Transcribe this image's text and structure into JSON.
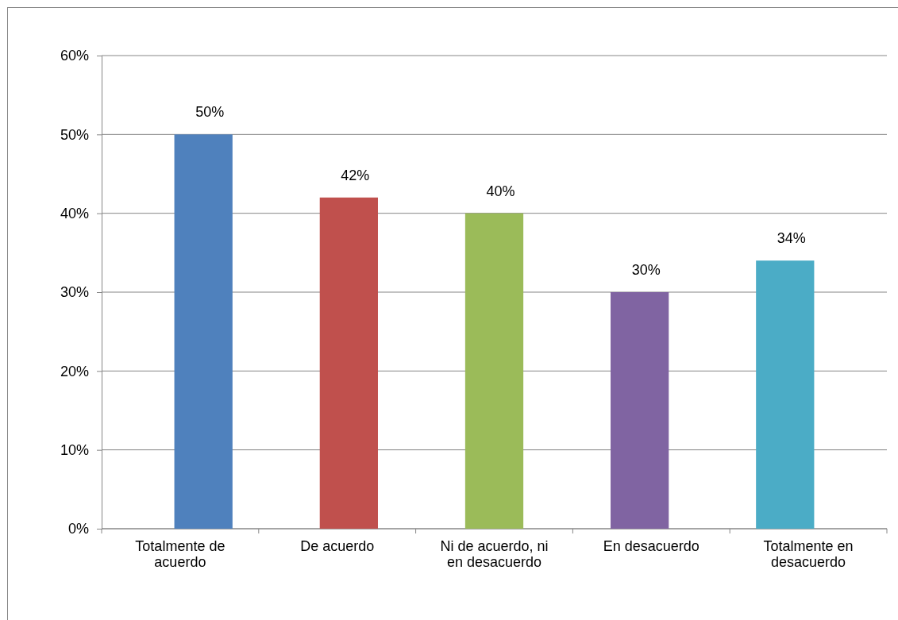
{
  "chart_data": {
    "type": "bar",
    "categories": [
      "Totalmente de acuerdo",
      "De acuerdo",
      "Ni de acuerdo, ni en desacuerdo",
      "En desacuerdo",
      "Totalmente en desacuerdo"
    ],
    "values": [
      50,
      42,
      40,
      30,
      34
    ],
    "colors": [
      "#4f81bd",
      "#c0504d",
      "#9bbb59",
      "#8064a2",
      "#4bacc6"
    ],
    "value_labels": [
      "50%",
      "42%",
      "40%",
      "30%",
      "34%"
    ],
    "ylim": [
      0,
      60
    ],
    "yticks": [
      {
        "value": 0,
        "label": "0%"
      },
      {
        "value": 10,
        "label": "10%"
      },
      {
        "value": 20,
        "label": "20%"
      },
      {
        "value": 30,
        "label": "30%"
      },
      {
        "value": 40,
        "label": "40%"
      },
      {
        "value": 50,
        "label": "50%"
      },
      {
        "value": 60,
        "label": "60%"
      }
    ],
    "grid": "y"
  }
}
